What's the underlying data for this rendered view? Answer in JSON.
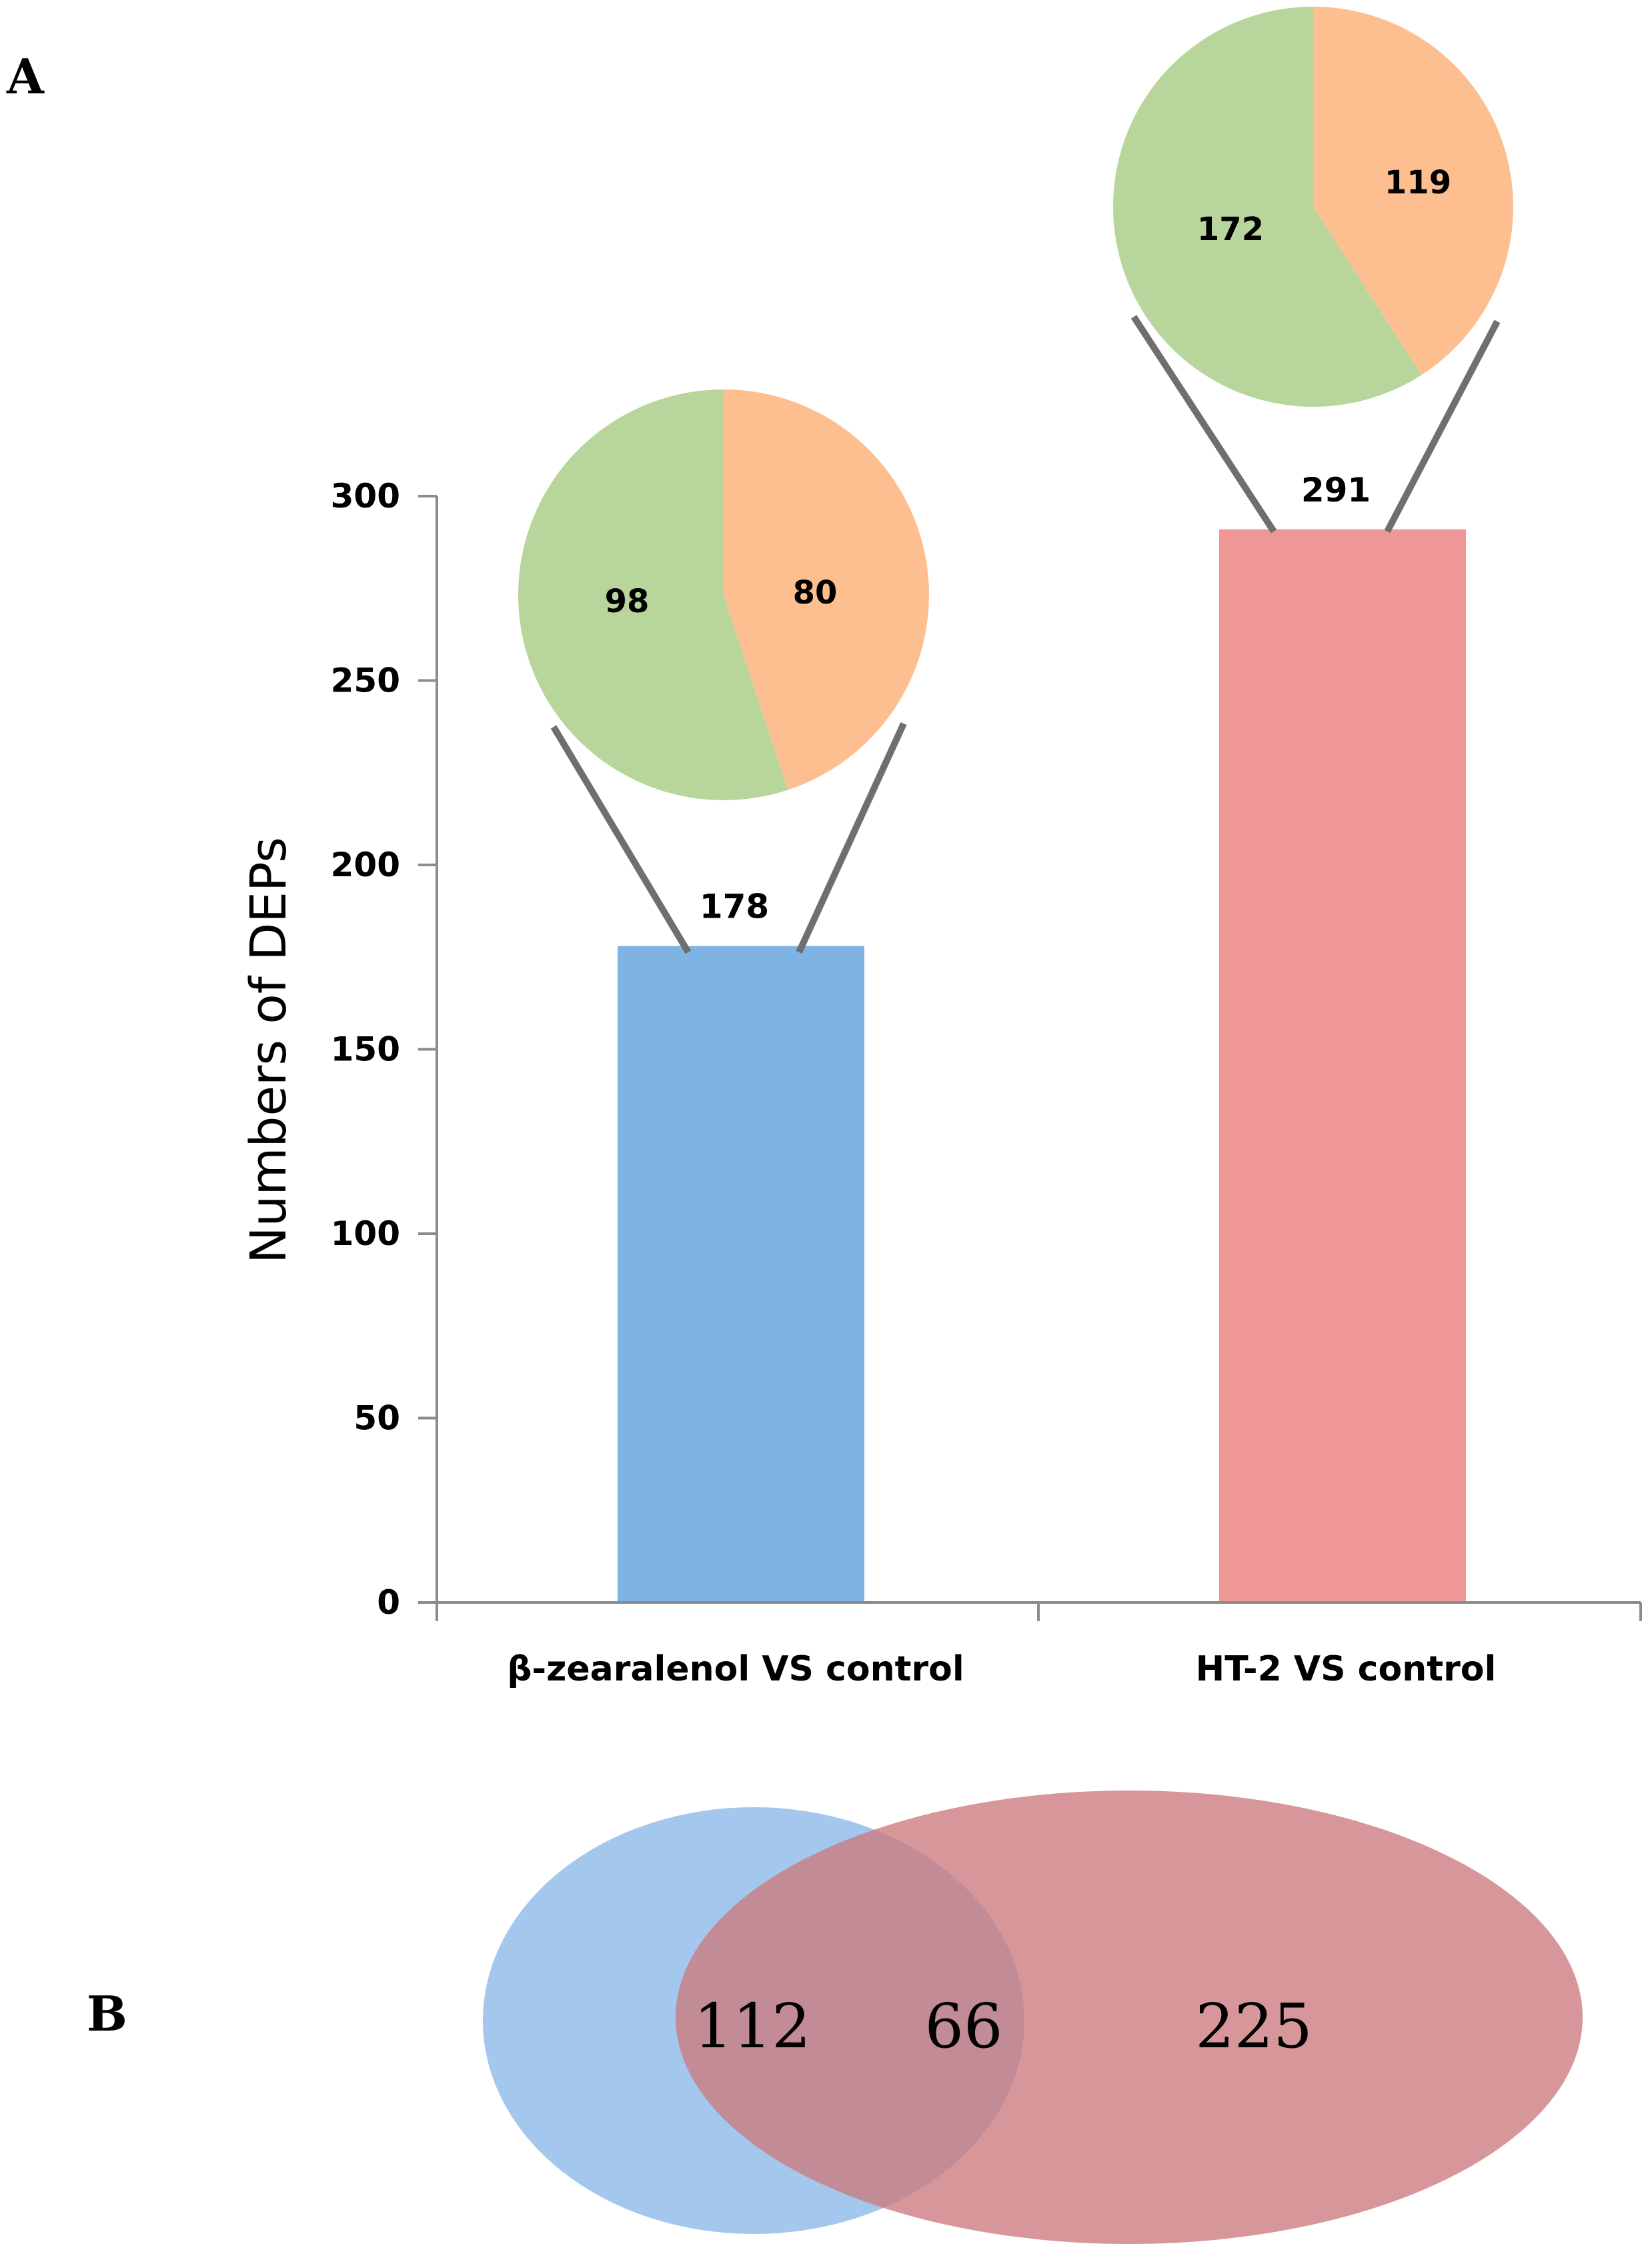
{
  "panels": {
    "a": "A",
    "b": "B"
  },
  "chart_data": [
    {
      "type": "bar",
      "ylabel": "Numbers of DEPs",
      "ylim": [
        0,
        300
      ],
      "yticks": [
        0,
        50,
        100,
        150,
        200,
        250,
        300
      ],
      "grid": false,
      "categories": [
        "β-zearalenol  VS control",
        "HT-2 VS control"
      ],
      "values": [
        178,
        291
      ],
      "bar_colors": [
        "#7fb3e3",
        "#ef9696"
      ],
      "data_labels": [
        "178",
        "291"
      ],
      "pies": [
        {
          "values": [
            98,
            80
          ],
          "labels": [
            "98",
            "80"
          ],
          "colors": [
            "#b8d69c",
            "#fdbf8f"
          ]
        },
        {
          "values": [
            172,
            119
          ],
          "labels": [
            "172",
            "119"
          ],
          "colors": [
            "#b8d69c",
            "#fdbf8f"
          ]
        }
      ]
    },
    {
      "type": "venn",
      "sets": [
        {
          "only": 112,
          "color": "#8ab9e8"
        },
        {
          "only": 225,
          "color": "#cc7a7d"
        }
      ],
      "overlap": 66,
      "labels": [
        "112",
        "66",
        "225"
      ]
    }
  ]
}
